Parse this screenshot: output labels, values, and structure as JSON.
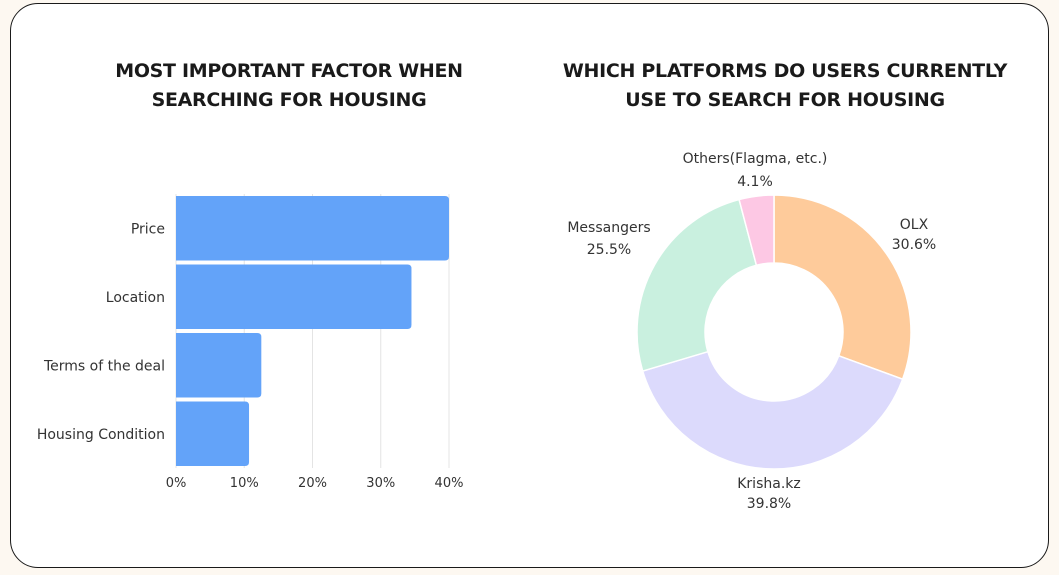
{
  "left_chart": {
    "title_line1": "MOST IMPORTANT FACTOR WHEN",
    "title_line2": "SEARCHING FOR HOUSING"
  },
  "right_chart": {
    "title_line1": "WHICH PLATFORMS DO USERS CURRENTLY",
    "title_line2": "USE TO SEARCH FOR HOUSING"
  },
  "chart_data": [
    {
      "type": "bar",
      "orientation": "horizontal",
      "title": "MOST IMPORTANT FACTOR WHEN SEARCHING FOR HOUSING",
      "categories": [
        "Price",
        "Location",
        "Terms of the deal",
        "Housing Condition"
      ],
      "values": [
        40,
        34.5,
        12.5,
        10.7
      ],
      "xlim": [
        0,
        40
      ],
      "x_ticks": [
        0,
        10,
        20,
        30,
        40
      ],
      "x_tick_labels": [
        "0%",
        "10%",
        "20%",
        "30%",
        "40%"
      ],
      "grid": "vertical",
      "bar_color": "#63a3f9"
    },
    {
      "type": "pie",
      "donut": true,
      "title": "WHICH PLATFORMS DO USERS CURRENTLY USE TO SEARCH FOR HOUSING",
      "slices": [
        {
          "label": "OLX",
          "value": 30.6,
          "value_label": "30.6%",
          "color": "#fecb9b"
        },
        {
          "label": "Krisha.kz",
          "value": 39.8,
          "value_label": "39.8%",
          "color": "#dcdafc"
        },
        {
          "label": "Messangers",
          "value": 25.5,
          "value_label": "25.5%",
          "color": "#c9f0df"
        },
        {
          "label": "Others(Flagma, etc.)",
          "value": 4.1,
          "value_label": "4.1%",
          "color": "#fdc8e4"
        }
      ]
    }
  ]
}
